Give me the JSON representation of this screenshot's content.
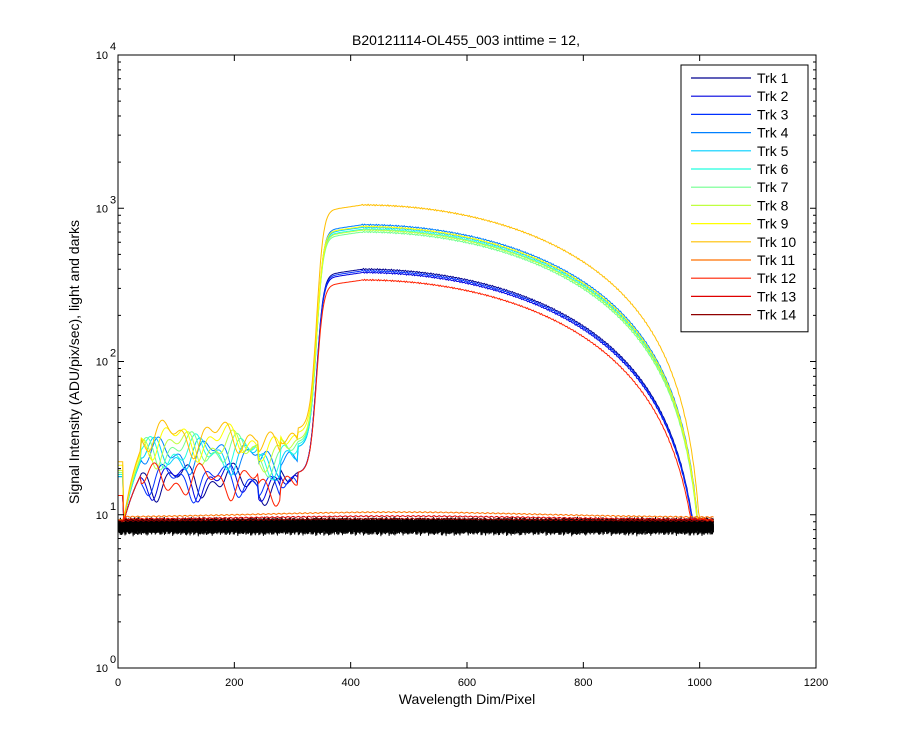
{
  "chart_data": {
    "type": "line",
    "title": "B20121114-OL455_003 inttime = 12,",
    "xlabel": "Wavelength Dim/Pixel",
    "ylabel": "Signal Intensity (ADU/pix/sec), light and darks",
    "xlim": [
      0,
      1200
    ],
    "ylim": [
      1,
      10000
    ],
    "y_scale": "log",
    "x_ticks": [
      0,
      200,
      400,
      600,
      800,
      1000,
      1200
    ],
    "y_ticks": [
      {
        "value": 1,
        "base": "10",
        "exp": "0"
      },
      {
        "value": 10,
        "base": "10",
        "exp": "1"
      },
      {
        "value": 100,
        "base": "10",
        "exp": "2"
      },
      {
        "value": 1000,
        "base": "10",
        "exp": "3"
      },
      {
        "value": 10000,
        "base": "10",
        "exp": "4"
      }
    ],
    "grid": false,
    "legend_position": "top-right",
    "series": [
      {
        "name": "Trk 1",
        "color": "#00008f",
        "plateau": 17,
        "peak": 400
      },
      {
        "name": "Trk 2",
        "color": "#0000df",
        "plateau": 17,
        "peak": 380
      },
      {
        "name": "Trk 3",
        "color": "#0030ff",
        "plateau": 17,
        "peak": 390
      },
      {
        "name": "Trk 4",
        "color": "#0080ff",
        "plateau": 25,
        "peak": 780
      },
      {
        "name": "Trk 5",
        "color": "#00cfff",
        "plateau": 25,
        "peak": 750
      },
      {
        "name": "Trk 6",
        "color": "#20ffdf",
        "plateau": 26,
        "peak": 730
      },
      {
        "name": "Trk 7",
        "color": "#70ff8f",
        "plateau": 27,
        "peak": 700
      },
      {
        "name": "Trk 8",
        "color": "#bfff40",
        "plateau": 28,
        "peak": 720
      },
      {
        "name": "Trk 9",
        "color": "#ffff00",
        "plateau": 31,
        "peak": 760
      },
      {
        "name": "Trk 10",
        "color": "#ffbf00",
        "plateau": 33,
        "peak": 1050
      },
      {
        "name": "Trk 11",
        "color": "#ff7000",
        "plateau": 9.6,
        "peak": 10.4
      },
      {
        "name": "Trk 12",
        "color": "#ff2000",
        "plateau": 17,
        "peak": 340
      },
      {
        "name": "Trk 13",
        "color": "#df0000",
        "plateau": 9.3,
        "peak": 9.8
      },
      {
        "name": "Trk 14",
        "color": "#8f0000",
        "plateau": 9.1,
        "peak": 9.4
      }
    ],
    "dark_level": 8.5,
    "x_max_data": 1024
  }
}
